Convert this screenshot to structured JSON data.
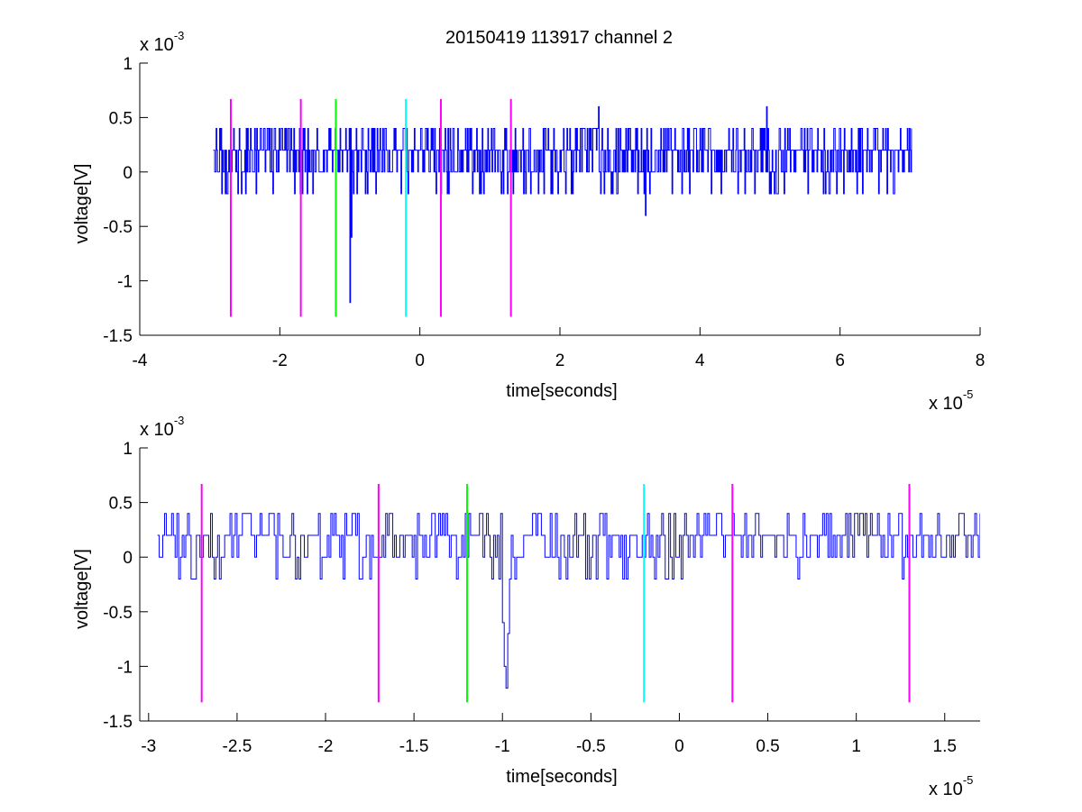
{
  "title": "20150419 113917 channel 2",
  "colors": {
    "signal": "#0000ff",
    "marker_magenta": "#ff00ff",
    "marker_green": "#00ff00",
    "marker_cyan": "#00ffff",
    "axis": "#000000",
    "background": "#ffffff"
  },
  "chart_data": [
    {
      "type": "line",
      "xlabel": "time[seconds]",
      "ylabel": "voltage[V]",
      "xlim": [
        -4,
        8
      ],
      "ylim": [
        -1.5,
        1
      ],
      "xticks": [
        -4,
        -2,
        0,
        2,
        4,
        6,
        8
      ],
      "xtick_labels": [
        "-4",
        "-2",
        "0",
        "2",
        "4",
        "6",
        "8"
      ],
      "yticks": [
        -1.5,
        -1,
        -0.5,
        0,
        0.5,
        1
      ],
      "ytick_labels": [
        "-1.5",
        "-1",
        "-0.5",
        "0",
        "0.5",
        "1"
      ],
      "x_multiplier": {
        "base": "x 10",
        "exp": "-5"
      },
      "y_multiplier": {
        "base": "x 10",
        "exp": "-3"
      },
      "grid": false,
      "series": [
        {
          "color": "#0000ff",
          "x_range": [
            -2.95,
            7.02
          ],
          "step": 0.01,
          "baseline": 0.2,
          "levels": [
            -0.2,
            0,
            0.2,
            0.4
          ],
          "events": [
            {
              "x": -1.0,
              "y": -1.2
            },
            {
              "x": -0.98,
              "y": -0.6
            },
            {
              "x": 2.55,
              "y": 0.6
            },
            {
              "x": 3.22,
              "y": -0.4
            },
            {
              "x": 4.95,
              "y": 0.6
            },
            {
              "x": 6.55,
              "y": -0.2
            }
          ]
        }
      ],
      "markers": [
        {
          "x": -2.7,
          "color": "#ff00ff",
          "y_range": [
            -1.33,
            0.67
          ]
        },
        {
          "x": -1.7,
          "color": "#ff00ff",
          "y_range": [
            -1.33,
            0.67
          ]
        },
        {
          "x": -1.2,
          "color": "#00ff00",
          "y_range": [
            -1.33,
            0.67
          ]
        },
        {
          "x": -0.2,
          "color": "#00ffff",
          "y_range": [
            -1.33,
            0.67
          ]
        },
        {
          "x": 0.3,
          "color": "#ff00ff",
          "y_range": [
            -1.33,
            0.67
          ]
        },
        {
          "x": 1.3,
          "color": "#ff00ff",
          "y_range": [
            -1.33,
            0.67
          ]
        }
      ]
    },
    {
      "type": "line",
      "xlabel": "time[seconds]",
      "ylabel": "voltage[V]",
      "xlim": [
        -3.05,
        1.7
      ],
      "ylim": [
        -1.5,
        1
      ],
      "xticks": [
        -3,
        -2.5,
        -2,
        -1.5,
        -1,
        -0.5,
        0,
        0.5,
        1,
        1.5
      ],
      "xtick_labels": [
        "-3",
        "-2.5",
        "-2",
        "-1.5",
        "-1",
        "-0.5",
        "0",
        "0.5",
        "1",
        "1.5"
      ],
      "yticks": [
        -1.5,
        -1,
        -0.5,
        0,
        0.5,
        1
      ],
      "ytick_labels": [
        "-1.5",
        "-1",
        "-0.5",
        "0",
        "0.5",
        "1"
      ],
      "x_multiplier": {
        "base": "x 10",
        "exp": "-5"
      },
      "y_multiplier": {
        "base": "x 10",
        "exp": "-3"
      },
      "grid": false,
      "series": [
        {
          "color": "#0000ff",
          "x_range": [
            -2.95,
            1.7
          ],
          "step": 0.01,
          "baseline": 0.2,
          "levels": [
            -0.2,
            0,
            0.2,
            0.4
          ],
          "events": [
            {
              "x": -1.02,
              "y": -0.2
            },
            {
              "x": -1.0,
              "y": -0.6
            },
            {
              "x": -0.99,
              "y": -1.0
            },
            {
              "x": -0.98,
              "y": -1.2
            },
            {
              "x": -0.97,
              "y": -0.7
            },
            {
              "x": -0.96,
              "y": -0.2
            }
          ]
        }
      ],
      "markers": [
        {
          "x": -2.7,
          "color": "#ff00ff",
          "y_range": [
            -1.33,
            0.67
          ]
        },
        {
          "x": -1.7,
          "color": "#ff00ff",
          "y_range": [
            -1.33,
            0.67
          ]
        },
        {
          "x": -1.2,
          "color": "#00ff00",
          "y_range": [
            -1.33,
            0.67
          ]
        },
        {
          "x": -0.2,
          "color": "#00ffff",
          "y_range": [
            -1.33,
            0.67
          ]
        },
        {
          "x": 0.3,
          "color": "#ff00ff",
          "y_range": [
            -1.33,
            0.67
          ]
        },
        {
          "x": 1.3,
          "color": "#ff00ff",
          "y_range": [
            -1.33,
            0.67
          ]
        }
      ]
    }
  ]
}
